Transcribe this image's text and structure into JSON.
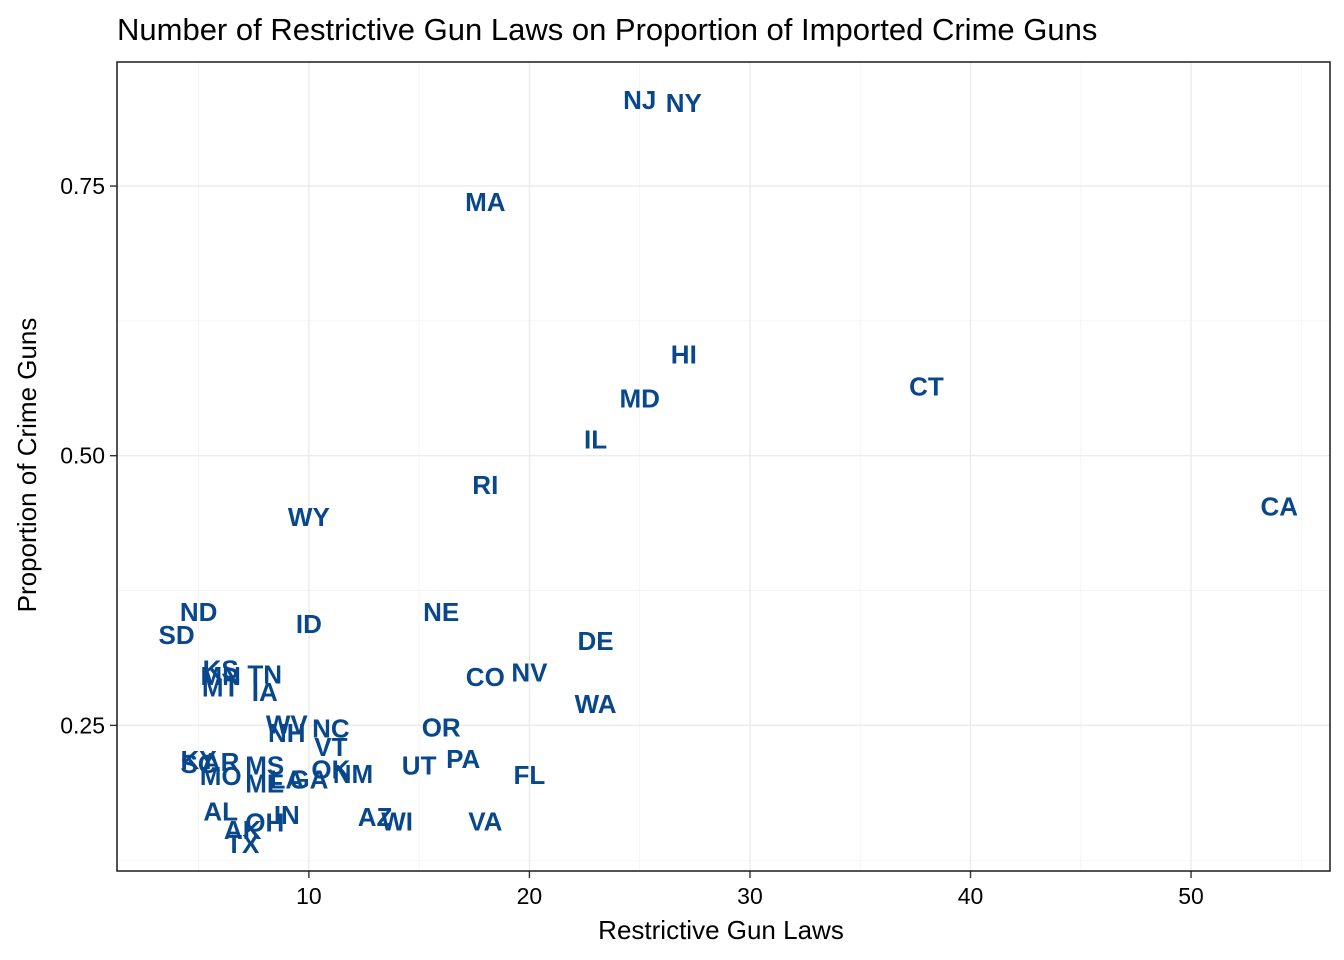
{
  "chart_data": {
    "type": "scatter",
    "title": "Number of Restrictive Gun Laws on Proportion of Imported Crime Guns",
    "xlabel": "Restrictive Gun Laws",
    "ylabel": "Proportion of Crime Guns",
    "xlim": [
      1.3,
      56.3
    ],
    "ylim": [
      0.115,
      0.865
    ],
    "x_ticks": [
      10,
      20,
      30,
      40,
      50
    ],
    "x_tick_labels": [
      "10",
      "20",
      "30",
      "40",
      "50"
    ],
    "y_ticks": [
      0.25,
      0.5,
      0.75
    ],
    "y_tick_labels": [
      "0.25",
      "0.50",
      "0.75"
    ],
    "grid": true,
    "label_color": "#08478c",
    "points": [
      {
        "label": "NJ",
        "x": 25.0,
        "y": 0.83
      },
      {
        "label": "NY",
        "x": 27.0,
        "y": 0.827
      },
      {
        "label": "MA",
        "x": 18.0,
        "y": 0.735
      },
      {
        "label": "HI",
        "x": 27.0,
        "y": 0.594
      },
      {
        "label": "CT",
        "x": 38.0,
        "y": 0.564
      },
      {
        "label": "MD",
        "x": 25.0,
        "y": 0.553
      },
      {
        "label": "IL",
        "x": 23.0,
        "y": 0.515
      },
      {
        "label": "RI",
        "x": 18.0,
        "y": 0.473
      },
      {
        "label": "CA",
        "x": 54.0,
        "y": 0.453
      },
      {
        "label": "WY",
        "x": 10.0,
        "y": 0.443
      },
      {
        "label": "ND",
        "x": 5.0,
        "y": 0.355
      },
      {
        "label": "NE",
        "x": 16.0,
        "y": 0.355
      },
      {
        "label": "ID",
        "x": 10.0,
        "y": 0.344
      },
      {
        "label": "SD",
        "x": 4.0,
        "y": 0.334
      },
      {
        "label": "DE",
        "x": 23.0,
        "y": 0.328
      },
      {
        "label": "KS",
        "x": 6.0,
        "y": 0.302
      },
      {
        "label": "TN",
        "x": 8.0,
        "y": 0.297
      },
      {
        "label": "MN",
        "x": 6.0,
        "y": 0.296
      },
      {
        "label": "NV",
        "x": 20.0,
        "y": 0.299
      },
      {
        "label": "CO",
        "x": 18.0,
        "y": 0.295
      },
      {
        "label": "MT",
        "x": 6.0,
        "y": 0.285
      },
      {
        "label": "IA",
        "x": 8.0,
        "y": 0.281
      },
      {
        "label": "WA",
        "x": 23.0,
        "y": 0.27
      },
      {
        "label": "WV",
        "x": 9.0,
        "y": 0.251
      },
      {
        "label": "NC",
        "x": 11.0,
        "y": 0.247
      },
      {
        "label": "OR",
        "x": 16.0,
        "y": 0.248
      },
      {
        "label": "NH",
        "x": 9.0,
        "y": 0.243
      },
      {
        "label": "VT",
        "x": 11.0,
        "y": 0.23
      },
      {
        "label": "KY",
        "x": 5.0,
        "y": 0.218
      },
      {
        "label": "SC",
        "x": 5.0,
        "y": 0.214
      },
      {
        "label": "AR",
        "x": 6.0,
        "y": 0.216
      },
      {
        "label": "MS",
        "x": 8.0,
        "y": 0.213
      },
      {
        "label": "PA",
        "x": 17.0,
        "y": 0.219
      },
      {
        "label": "UT",
        "x": 15.0,
        "y": 0.213
      },
      {
        "label": "OK",
        "x": 11.0,
        "y": 0.209
      },
      {
        "label": "NM",
        "x": 12.0,
        "y": 0.205
      },
      {
        "label": "GA",
        "x": 10.0,
        "y": 0.2
      },
      {
        "label": "MO",
        "x": 6.0,
        "y": 0.203
      },
      {
        "label": "FL",
        "x": 20.0,
        "y": 0.204
      },
      {
        "label": "LA",
        "x": 9.0,
        "y": 0.2
      },
      {
        "label": "ME",
        "x": 8.0,
        "y": 0.196
      },
      {
        "label": "AL",
        "x": 6.0,
        "y": 0.17
      },
      {
        "label": "IN",
        "x": 9.0,
        "y": 0.167
      },
      {
        "label": "AZ",
        "x": 13.0,
        "y": 0.165
      },
      {
        "label": "WI",
        "x": 14.0,
        "y": 0.161
      },
      {
        "label": "VA",
        "x": 18.0,
        "y": 0.161
      },
      {
        "label": "OH",
        "x": 8.0,
        "y": 0.16
      },
      {
        "label": "AK",
        "x": 7.0,
        "y": 0.153
      },
      {
        "label": "TX",
        "x": 7.0,
        "y": 0.14
      }
    ]
  }
}
